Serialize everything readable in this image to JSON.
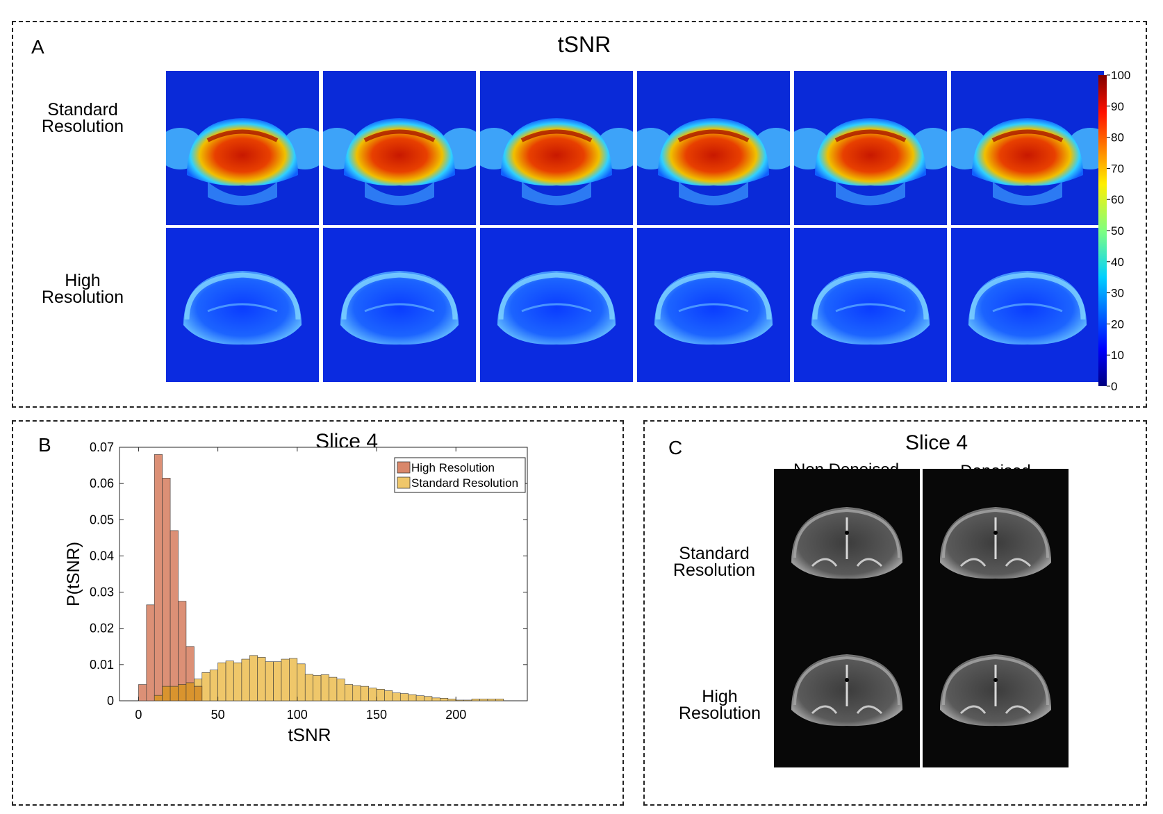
{
  "panelA": {
    "letter": "A",
    "title": "tSNR",
    "row_labels": [
      "Standard\nResolution",
      "High\nResolution"
    ],
    "colorbar": {
      "ticks": [
        "100",
        "90",
        "80",
        "70",
        "60",
        "50",
        "40",
        "30",
        "20",
        "10",
        "0"
      ],
      "min": 0,
      "max": 100,
      "colormap": "jet"
    },
    "columns": 6
  },
  "panelB": {
    "letter": "B",
    "title": "Slice 4"
  },
  "panelC": {
    "letter": "C",
    "title": "Slice 4",
    "col_labels": [
      "Non Denoised",
      "Denoised"
    ],
    "row_labels": [
      "Standard\nResolution",
      "High\nResolution"
    ]
  },
  "chart_data": {
    "type": "bar",
    "title": "Slice 4",
    "xlabel": "tSNR",
    "ylabel": "P(tSNR)",
    "xlim": [
      -12,
      245
    ],
    "ylim": [
      0,
      0.07
    ],
    "xticks": [
      0,
      50,
      100,
      150,
      200
    ],
    "yticks": [
      0,
      0.01,
      0.02,
      0.03,
      0.04,
      0.05,
      0.06,
      0.07
    ],
    "ytick_labels": [
      "0",
      "0.01",
      "0.02",
      "0.03",
      "0.04",
      "0.05",
      "0.06",
      "0.07"
    ],
    "legend_position": "top-right",
    "series": [
      {
        "name": "High Resolution",
        "color": "#d9876a",
        "bin_width": 5,
        "bin_starts": [
          0,
          5,
          10,
          15,
          20,
          25,
          30,
          35
        ],
        "values": [
          0.0045,
          0.0265,
          0.068,
          0.0615,
          0.047,
          0.0275,
          0.015,
          0.004
        ]
      },
      {
        "name": "Standard Resolution",
        "color": "#efc76a",
        "bin_width": 5,
        "bin_starts": [
          10,
          15,
          20,
          25,
          30,
          35,
          40,
          45,
          50,
          55,
          60,
          65,
          70,
          75,
          80,
          85,
          90,
          95,
          100,
          105,
          110,
          115,
          120,
          125,
          130,
          135,
          140,
          145,
          150,
          155,
          160,
          165,
          170,
          175,
          180,
          185,
          190,
          195,
          200,
          205,
          210,
          215,
          220,
          225
        ],
        "values": [
          0.0015,
          0.004,
          0.004,
          0.0045,
          0.005,
          0.006,
          0.0078,
          0.0085,
          0.0105,
          0.011,
          0.0105,
          0.0115,
          0.0125,
          0.012,
          0.0108,
          0.0108,
          0.0115,
          0.0117,
          0.0102,
          0.0073,
          0.007,
          0.0072,
          0.0065,
          0.006,
          0.0045,
          0.0042,
          0.004,
          0.0035,
          0.0032,
          0.0028,
          0.0022,
          0.002,
          0.0017,
          0.0014,
          0.0012,
          0.0008,
          0.0007,
          0.0005,
          0.0002,
          0.0002,
          0.0005,
          0.0005,
          0.0005,
          0.0005
        ]
      }
    ]
  }
}
